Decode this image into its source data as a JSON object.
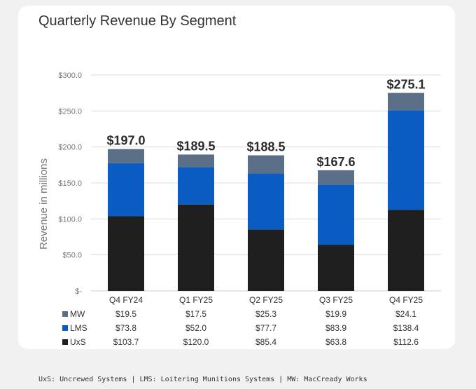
{
  "footnote": "UxS: Uncrewed Systems | LMS: Loitering Munitions Systems | MW: MacCready Works",
  "chart_data": {
    "type": "bar",
    "stacked": true,
    "title": "Quarterly Revenue By Segment",
    "ylabel": "Revenue in millions",
    "xlabel": "",
    "ylim": [
      0,
      300
    ],
    "yticks": [
      0,
      50,
      100,
      150,
      200,
      250,
      300
    ],
    "ytick_labels": [
      "$-",
      "$50.0",
      "$100.0",
      "$150.0",
      "$200.0",
      "$250.0",
      "$300.0"
    ],
    "grid": "horizontal",
    "categories": [
      "Q4 FY24",
      "Q1 FY25",
      "Q2 FY25",
      "Q3 FY25",
      "Q4 FY25"
    ],
    "totals": [
      "$197.0",
      "$189.5",
      "$188.5",
      "$167.6",
      "$275.1"
    ],
    "series": [
      {
        "name": "UxS",
        "color": "#1f1f1f",
        "values": [
          103.7,
          120.0,
          85.4,
          63.8,
          112.6
        ],
        "labels": [
          "$103.7",
          "$120.0",
          "$85.4",
          "$63.8",
          "$112.6"
        ]
      },
      {
        "name": "LMS",
        "color": "#0a5cc2",
        "values": [
          73.8,
          52.0,
          77.7,
          83.9,
          138.4
        ],
        "labels": [
          "$73.8",
          "$52.0",
          "$77.7",
          "$83.9",
          "$138.4"
        ]
      },
      {
        "name": "MW",
        "color": "#5b6f88",
        "values": [
          19.5,
          17.5,
          25.3,
          19.9,
          24.1
        ],
        "labels": [
          "$19.5",
          "$17.5",
          "$25.3",
          "$19.9",
          "$24.1"
        ]
      }
    ],
    "table_row_order": [
      "MW",
      "LMS",
      "UxS"
    ]
  }
}
